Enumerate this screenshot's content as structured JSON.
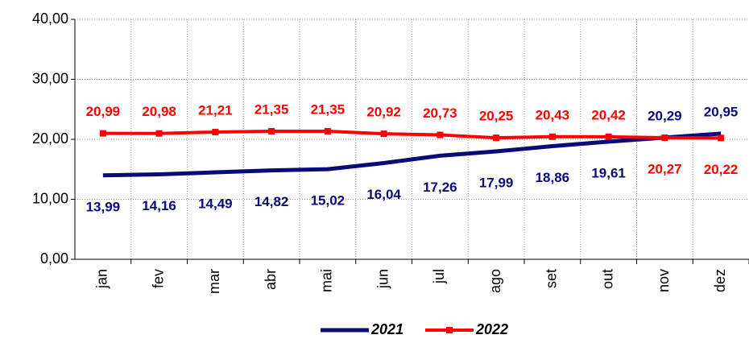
{
  "chart_data": {
    "type": "line",
    "categories": [
      "jan",
      "fev",
      "mar",
      "abr",
      "mai",
      "jun",
      "jul",
      "ago",
      "set",
      "out",
      "nov",
      "dez"
    ],
    "series": [
      {
        "name": "2021",
        "color": "#0a0a78",
        "values": [
          13.99,
          14.16,
          14.49,
          14.82,
          15.02,
          16.04,
          17.26,
          17.99,
          18.86,
          19.61,
          20.29,
          20.95
        ],
        "value_labels": [
          "13,99",
          "14,16",
          "14,49",
          "14,82",
          "15,02",
          "16,04",
          "17,26",
          "17,99",
          "18,86",
          "19,61",
          "20,29",
          "20,95"
        ]
      },
      {
        "name": "2022",
        "color": "#ff0000",
        "values": [
          20.99,
          20.98,
          21.21,
          21.35,
          21.35,
          20.92,
          20.73,
          20.25,
          20.43,
          20.42,
          20.27,
          20.22
        ],
        "value_labels": [
          "20,99",
          "20,98",
          "21,21",
          "21,35",
          "21,35",
          "20,92",
          "20,73",
          "20,25",
          "20,43",
          "20,42",
          "20,27",
          "20,22"
        ]
      }
    ],
    "ylim": [
      0,
      40
    ],
    "yticks": [
      {
        "value": 0,
        "label": "0,00"
      },
      {
        "value": 10,
        "label": "10,00"
      },
      {
        "value": 20,
        "label": "20,00"
      },
      {
        "value": 30,
        "label": "30,00"
      },
      {
        "value": 40,
        "label": "40,00"
      }
    ],
    "grid": true,
    "legend": "bottom"
  }
}
